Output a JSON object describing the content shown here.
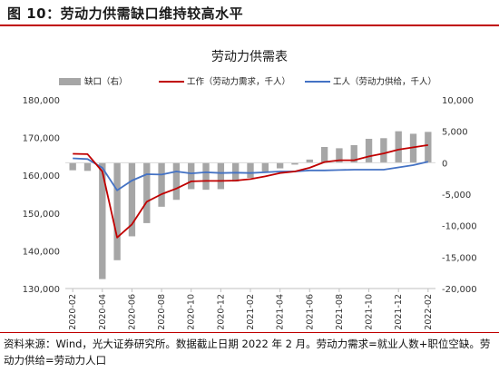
{
  "figure": {
    "title": "图 10：劳动力供需缺口维持较高水平",
    "footnote": "资料来源：Wind，光大证券研究所。数据截止日期 2022 年 2 月。劳动力需求=就业人数+职位空缺。劳动力供给=劳动力人口"
  },
  "colors": {
    "bars": "#a6a6a6",
    "demand": "#c00000",
    "supply": "#4472c4",
    "accent_rule": "#c00000"
  },
  "chart_data": {
    "type": "bar+line",
    "title": "劳动力供需表",
    "legend_position": "top",
    "x": [
      "2020-02",
      "2020-03",
      "2020-04",
      "2020-05",
      "2020-06",
      "2020-07",
      "2020-08",
      "2020-09",
      "2020-10",
      "2020-11",
      "2020-12",
      "2021-01",
      "2021-02",
      "2021-03",
      "2021-04",
      "2021-05",
      "2021-06",
      "2021-07",
      "2021-08",
      "2021-09",
      "2021-10",
      "2021-11",
      "2021-12",
      "2022-01",
      "2022-02"
    ],
    "x_tick_labels": [
      "2020-02",
      "2020-04",
      "2020-06",
      "2020-08",
      "2020-10",
      "2020-12",
      "2021-02",
      "2021-04",
      "2021-06",
      "2021-08",
      "2021-10",
      "2021-12",
      "2022-02"
    ],
    "left_axis": {
      "min": 130000,
      "max": 180000,
      "ticks": [
        "130,000",
        "140,000",
        "150,000",
        "160,000",
        "170,000",
        "180,000"
      ]
    },
    "right_axis": {
      "min": -20000,
      "max": 10000,
      "ticks": [
        "-20,000",
        "-15,000",
        "-10,000",
        "-5,000",
        "0",
        "5,000",
        "10,000"
      ]
    },
    "series": [
      {
        "name": "缺口（右）",
        "type": "bar",
        "axis": "right",
        "values": [
          -1200,
          -1300,
          -18500,
          -15500,
          -11700,
          -9600,
          -7000,
          -5900,
          -4200,
          -4300,
          -4200,
          -3000,
          -2400,
          -1400,
          -900,
          -300,
          500,
          2500,
          2300,
          2800,
          3800,
          3900,
          5000,
          4600,
          4900
        ]
      },
      {
        "name": "工作（劳动力需求，千人）",
        "type": "line",
        "axis": "left",
        "values": [
          165700,
          165600,
          161000,
          143500,
          147000,
          153000,
          155000,
          156500,
          158400,
          158500,
          158500,
          158600,
          159000,
          159700,
          160600,
          161000,
          162000,
          163500,
          164000,
          164000,
          165000,
          165800,
          166800,
          167400,
          168000
        ]
      },
      {
        "name": "工人（劳动力供给，千人）",
        "type": "line",
        "axis": "left",
        "values": [
          164500,
          164300,
          162000,
          156000,
          158600,
          160300,
          160200,
          161000,
          160500,
          160800,
          160600,
          160700,
          160600,
          160800,
          161000,
          161000,
          161300,
          161300,
          161400,
          161500,
          161500,
          161500,
          162100,
          162700,
          163600
        ]
      }
    ]
  }
}
